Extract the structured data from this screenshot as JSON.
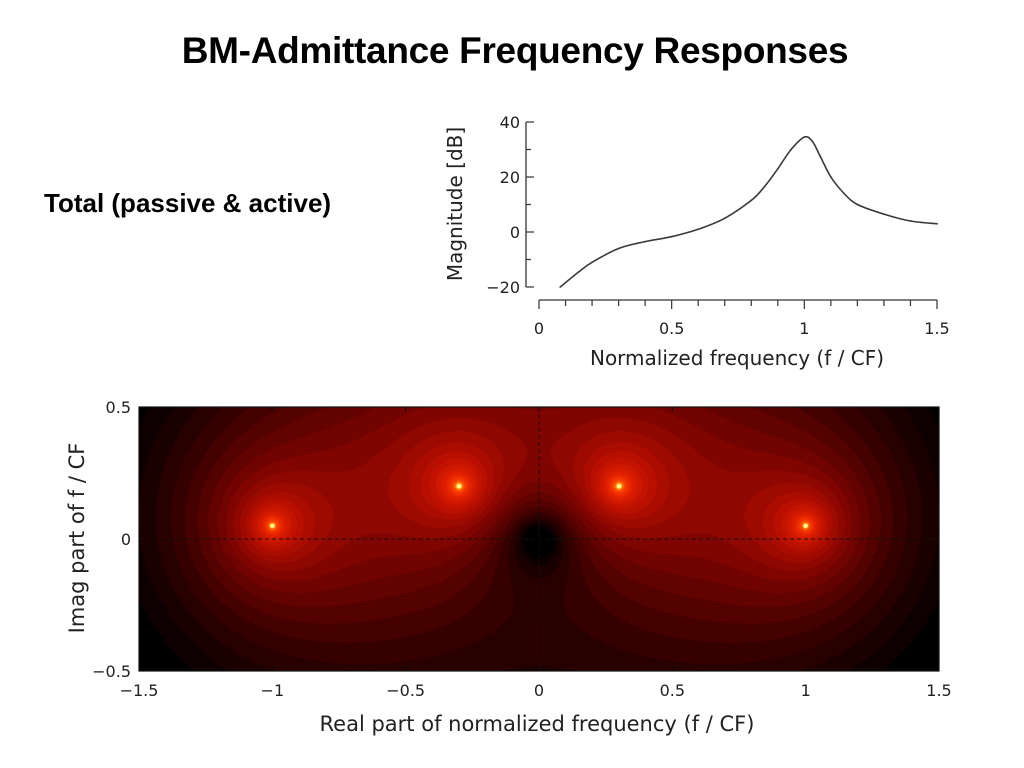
{
  "slide": {
    "title": "BM-Admittance Frequency Responses",
    "subtitle": "Total (passive & active)"
  },
  "chart_data": [
    {
      "type": "line",
      "xlabel": "Normalized frequency (f / CF)",
      "ylabel": "Magnitude [dB]",
      "xlim": [
        0,
        1.5
      ],
      "ylim": [
        -20,
        40
      ],
      "xticks": [
        "0",
        "0.5",
        "1",
        "1.5"
      ],
      "yticks": [
        "40",
        "20",
        "0",
        "−20"
      ],
      "series": [
        {
          "x": [
            0.08,
            0.15,
            0.2,
            0.3,
            0.4,
            0.5,
            0.6,
            0.7,
            0.8,
            0.85,
            0.9,
            0.95,
            1.0,
            1.03,
            1.06,
            1.1,
            1.15,
            1.2,
            1.3,
            1.4,
            1.5
          ],
          "y": [
            -20,
            -14.5,
            -11,
            -6,
            -3.5,
            -1.7,
            1,
            5,
            11.5,
            16.5,
            23,
            30,
            34.5,
            33,
            27.5,
            20,
            14,
            10,
            6.5,
            4,
            3
          ],
          "color": "#3a3a3a"
        }
      ]
    },
    {
      "type": "heatmap",
      "xlabel": "Real part of normalized frequency (f / CF)",
      "ylabel": "Imag part of  f / CF",
      "xlim": [
        -1.5,
        1.5
      ],
      "ylim": [
        -0.5,
        0.5
      ],
      "xticks": [
        "−1.5",
        "−1",
        "−0.5",
        "0",
        "0.5",
        "1",
        "1.5"
      ],
      "yticks": [
        "0.5",
        "0",
        "−0.5"
      ],
      "poles": [
        {
          "re": -1.0,
          "im": 0.05
        },
        {
          "re": 1.0,
          "im": 0.05
        },
        {
          "re": -0.3,
          "im": 0.2
        },
        {
          "re": 0.3,
          "im": 0.2
        }
      ],
      "zeros": [
        {
          "re": 0.0,
          "im": 0.0
        }
      ],
      "colormap": [
        "#000000",
        "#3a0000",
        "#7a0400",
        "#b60e00",
        "#e52100",
        "#ff4a00",
        "#ffd21e",
        "#ffff8c"
      ],
      "dashed_axes": true
    }
  ]
}
